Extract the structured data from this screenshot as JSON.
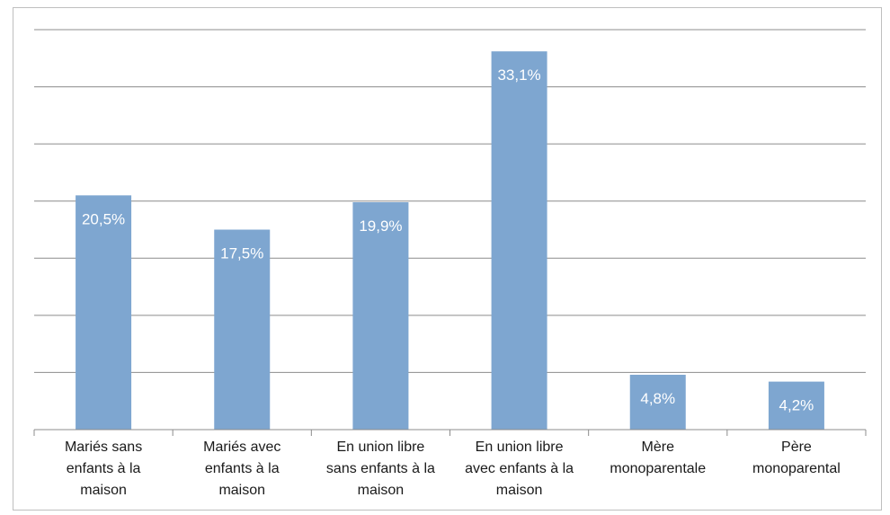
{
  "chart_data": {
    "type": "bar",
    "categories": [
      [
        "Mariés sans",
        "enfants à la",
        "maison"
      ],
      [
        "Mariés avec",
        "enfants à la",
        "maison"
      ],
      [
        "En union libre",
        "sans enfants à la",
        "maison"
      ],
      [
        "En union libre",
        "avec enfants à la",
        "maison"
      ],
      [
        "Mère",
        "monoparentale"
      ],
      [
        "Père",
        "monoparental"
      ]
    ],
    "values": [
      20.5,
      17.5,
      19.9,
      33.1,
      4.8,
      4.2
    ],
    "value_labels": [
      "20,5%",
      "17,5%",
      "19,9%",
      "33,1%",
      "4,8%",
      "4,2%"
    ],
    "ylim": [
      0,
      35
    ],
    "grid": true,
    "bar_color": "#7ea6d0",
    "gridline_color": "#8c8c8c"
  }
}
